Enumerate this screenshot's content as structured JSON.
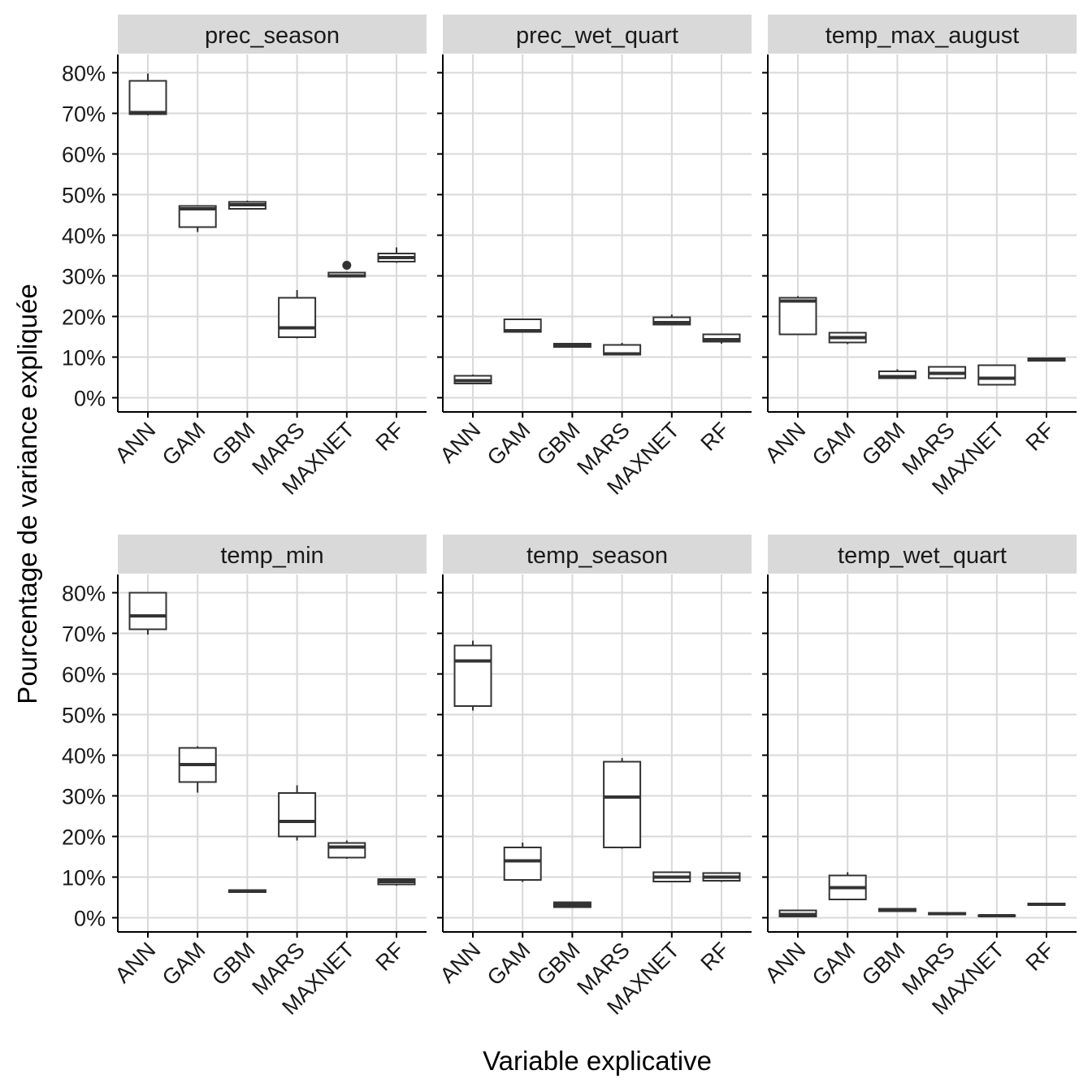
{
  "chart_data": {
    "type": "boxplot",
    "xlabel": "Variable explicative",
    "ylabel": "Pourcentage de variance expliquée",
    "categories": [
      "ANN",
      "GAM",
      "GBM",
      "MARS",
      "MAXNET",
      "RF"
    ],
    "y_ticks": [
      0,
      10,
      20,
      30,
      40,
      50,
      60,
      70,
      80
    ],
    "y_tick_labels": [
      "0%",
      "10%",
      "20%",
      "30%",
      "40%",
      "50%",
      "60%",
      "70%",
      "80%"
    ],
    "ylim": [
      -3.5,
      84.5
    ],
    "grid": true,
    "colors": {
      "strip_background": "#d9d9d9",
      "grid": "#d9d9d9",
      "box_stroke": "#333333",
      "axis": "#000000"
    },
    "panels": [
      {
        "title": "prec_season",
        "boxes": [
          {
            "category": "ANN",
            "min": 69.5,
            "q1": 69.8,
            "median": 70.2,
            "q3": 78.0,
            "max": 79.8,
            "outliers": []
          },
          {
            "category": "GAM",
            "min": 40.8,
            "q1": 42.0,
            "median": 46.5,
            "q3": 47.2,
            "max": 47.2,
            "outliers": []
          },
          {
            "category": "GBM",
            "min": 46.3,
            "q1": 46.5,
            "median": 47.5,
            "q3": 48.2,
            "max": 48.5,
            "outliers": []
          },
          {
            "category": "MARS",
            "min": 14.6,
            "q1": 14.9,
            "median": 17.2,
            "q3": 24.6,
            "max": 26.5,
            "outliers": []
          },
          {
            "category": "MAXNET",
            "min": 29.6,
            "q1": 29.8,
            "median": 30.0,
            "q3": 30.8,
            "max": 31.0,
            "outliers": [
              32.6
            ]
          },
          {
            "category": "RF",
            "min": 33.2,
            "q1": 33.5,
            "median": 34.5,
            "q3": 35.5,
            "max": 37.0,
            "outliers": []
          }
        ]
      },
      {
        "title": "prec_wet_quart",
        "boxes": [
          {
            "category": "ANN",
            "min": 3.3,
            "q1": 3.5,
            "median": 4.2,
            "q3": 5.4,
            "max": 5.7,
            "outliers": []
          },
          {
            "category": "GAM",
            "min": 16.0,
            "q1": 16.2,
            "median": 16.5,
            "q3": 19.3,
            "max": 19.5,
            "outliers": []
          },
          {
            "category": "GBM",
            "min": 12.3,
            "q1": 12.5,
            "median": 12.9,
            "q3": 13.3,
            "max": 13.5,
            "outliers": []
          },
          {
            "category": "MARS",
            "min": 10.5,
            "q1": 10.6,
            "median": 10.8,
            "q3": 13.0,
            "max": 13.5,
            "outliers": []
          },
          {
            "category": "MAXNET",
            "min": 17.8,
            "q1": 18.0,
            "median": 18.5,
            "q3": 19.8,
            "max": 20.5,
            "outliers": []
          },
          {
            "category": "RF",
            "min": 13.3,
            "q1": 13.8,
            "median": 14.3,
            "q3": 15.6,
            "max": 15.6,
            "outliers": []
          }
        ]
      },
      {
        "title": "temp_max_august",
        "boxes": [
          {
            "category": "ANN",
            "min": 15.4,
            "q1": 15.6,
            "median": 23.8,
            "q3": 24.6,
            "max": 25.0,
            "outliers": []
          },
          {
            "category": "GAM",
            "min": 13.2,
            "q1": 13.6,
            "median": 14.8,
            "q3": 16.0,
            "max": 16.1,
            "outliers": []
          },
          {
            "category": "GBM",
            "min": 4.7,
            "q1": 4.8,
            "median": 5.2,
            "q3": 6.5,
            "max": 7.0,
            "outliers": []
          },
          {
            "category": "MARS",
            "min": 4.5,
            "q1": 4.8,
            "median": 6.0,
            "q3": 7.6,
            "max": 7.6,
            "outliers": []
          },
          {
            "category": "MAXNET",
            "min": 3.0,
            "q1": 3.2,
            "median": 4.8,
            "q3": 8.0,
            "max": 8.0,
            "outliers": []
          },
          {
            "category": "RF",
            "min": 9.0,
            "q1": 9.1,
            "median": 9.4,
            "q3": 9.7,
            "max": 9.8,
            "outliers": []
          }
        ]
      },
      {
        "title": "temp_min",
        "boxes": [
          {
            "category": "ANN",
            "min": 69.7,
            "q1": 71.0,
            "median": 74.3,
            "q3": 80.0,
            "max": 80.2,
            "outliers": []
          },
          {
            "category": "GAM",
            "min": 30.8,
            "q1": 33.4,
            "median": 37.7,
            "q3": 41.8,
            "max": 42.2,
            "outliers": []
          },
          {
            "category": "GBM",
            "min": 6.2,
            "q1": 6.3,
            "median": 6.5,
            "q3": 6.8,
            "max": 6.9,
            "outliers": []
          },
          {
            "category": "MARS",
            "min": 19.0,
            "q1": 20.0,
            "median": 23.7,
            "q3": 30.7,
            "max": 32.6,
            "outliers": []
          },
          {
            "category": "MAXNET",
            "min": 14.5,
            "q1": 14.8,
            "median": 17.4,
            "q3": 18.4,
            "max": 19.0,
            "outliers": []
          },
          {
            "category": "RF",
            "min": 7.9,
            "q1": 8.2,
            "median": 8.9,
            "q3": 9.5,
            "max": 9.7,
            "outliers": []
          }
        ]
      },
      {
        "title": "temp_season",
        "boxes": [
          {
            "category": "ANN",
            "min": 51.0,
            "q1": 52.1,
            "median": 63.2,
            "q3": 67.0,
            "max": 68.2,
            "outliers": []
          },
          {
            "category": "GAM",
            "min": 8.8,
            "q1": 9.3,
            "median": 14.0,
            "q3": 17.3,
            "max": 18.5,
            "outliers": []
          },
          {
            "category": "GBM",
            "min": 2.5,
            "q1": 2.6,
            "median": 3.2,
            "q3": 3.8,
            "max": 3.9,
            "outliers": []
          },
          {
            "category": "MARS",
            "min": 17.0,
            "q1": 17.3,
            "median": 29.7,
            "q3": 38.4,
            "max": 39.3,
            "outliers": []
          },
          {
            "category": "MAXNET",
            "min": 8.8,
            "q1": 8.9,
            "median": 10.0,
            "q3": 11.2,
            "max": 11.2,
            "outliers": []
          },
          {
            "category": "RF",
            "min": 8.8,
            "q1": 9.1,
            "median": 10.0,
            "q3": 11.0,
            "max": 11.1,
            "outliers": []
          }
        ]
      },
      {
        "title": "temp_wet_quart",
        "boxes": [
          {
            "category": "ANN",
            "min": 0.2,
            "q1": 0.3,
            "median": 0.8,
            "q3": 1.8,
            "max": 2.0,
            "outliers": []
          },
          {
            "category": "GAM",
            "min": 4.3,
            "q1": 4.5,
            "median": 7.4,
            "q3": 10.4,
            "max": 11.2,
            "outliers": []
          },
          {
            "category": "GBM",
            "min": 1.5,
            "q1": 1.6,
            "median": 1.9,
            "q3": 2.2,
            "max": 2.3,
            "outliers": []
          },
          {
            "category": "MARS",
            "min": 0.7,
            "q1": 0.8,
            "median": 1.0,
            "q3": 1.2,
            "max": 1.3,
            "outliers": []
          },
          {
            "category": "MAXNET",
            "min": 0.3,
            "q1": 0.4,
            "median": 0.5,
            "q3": 0.6,
            "max": 0.7,
            "outliers": []
          },
          {
            "category": "RF",
            "min": 3.0,
            "q1": 3.1,
            "median": 3.3,
            "q3": 3.5,
            "max": 3.6,
            "outliers": []
          }
        ]
      }
    ]
  }
}
